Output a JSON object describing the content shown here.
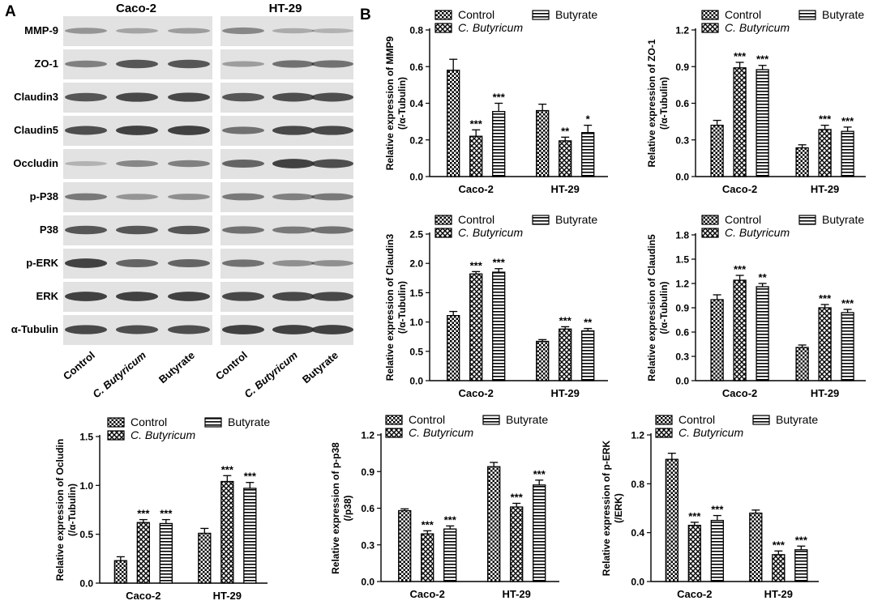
{
  "panel_a": {
    "letter": "A",
    "cell_lines": [
      "Caco-2",
      "HT-29"
    ],
    "proteins": [
      "MMP-9",
      "ZO-1",
      "Claudin3",
      "Claudin5",
      "Occludin",
      "p-P38",
      "P38",
      "p-ERK",
      "ERK",
      "α-Tubulin"
    ],
    "lane_labels": [
      "Control",
      "C. Butyricum",
      "Butyrate"
    ]
  },
  "panel_b": {
    "letter": "B"
  },
  "colors": {
    "bar_edge": "#000000",
    "background": "#ffffff",
    "blot_bg": "#e2e2e2",
    "band": "#303030"
  },
  "chart_data": [
    {
      "type": "bar",
      "ylabel": "Relative expression of MMP9",
      "ylabel2": "(/α-Tubulin)",
      "categories": [
        "Caco-2",
        "HT-29"
      ],
      "ylim": [
        0,
        0.8
      ],
      "yticks": [
        "0.0",
        "0.2",
        "0.4",
        "0.6",
        "0.8"
      ],
      "series": [
        {
          "name": "Control",
          "values": [
            0.58,
            0.36
          ],
          "errors": [
            0.06,
            0.035
          ],
          "sig": [
            "",
            ""
          ]
        },
        {
          "name": "C. Butyricum",
          "values": [
            0.22,
            0.195
          ],
          "errors": [
            0.035,
            0.02
          ],
          "sig": [
            "***",
            "**"
          ]
        },
        {
          "name": "Butyrate",
          "values": [
            0.355,
            0.24
          ],
          "errors": [
            0.045,
            0.04
          ],
          "sig": [
            "***",
            "*"
          ]
        }
      ]
    },
    {
      "type": "bar",
      "ylabel": "Relative expression of ZO-1",
      "ylabel2": "(/α-Tubulin)",
      "categories": [
        "Caco-2",
        "HT-29"
      ],
      "ylim": [
        0,
        1.2
      ],
      "yticks": [
        "0.0",
        "0.3",
        "0.6",
        "0.9",
        "1.2"
      ],
      "series": [
        {
          "name": "Control",
          "values": [
            0.42,
            0.235
          ],
          "errors": [
            0.04,
            0.025
          ],
          "sig": [
            "",
            ""
          ]
        },
        {
          "name": "C. Butyricum",
          "values": [
            0.89,
            0.385
          ],
          "errors": [
            0.045,
            0.035
          ],
          "sig": [
            "***",
            "***"
          ]
        },
        {
          "name": "Butyrate",
          "values": [
            0.875,
            0.37
          ],
          "errors": [
            0.035,
            0.035
          ],
          "sig": [
            "***",
            "***"
          ]
        }
      ]
    },
    {
      "type": "bar",
      "ylabel": "Relative expression of Claudin3",
      "ylabel2": "(/α-Tubulin)",
      "categories": [
        "Caco-2",
        "HT-29"
      ],
      "ylim": [
        0,
        2.5
      ],
      "yticks": [
        "0.0",
        "0.5",
        "1.0",
        "1.5",
        "2.0",
        "2.5"
      ],
      "series": [
        {
          "name": "Control",
          "values": [
            1.11,
            0.67
          ],
          "errors": [
            0.07,
            0.03
          ],
          "sig": [
            "",
            ""
          ]
        },
        {
          "name": "C. Butyricum",
          "values": [
            1.82,
            0.88
          ],
          "errors": [
            0.04,
            0.04
          ],
          "sig": [
            "***",
            "***"
          ]
        },
        {
          "name": "Butyrate",
          "values": [
            1.85,
            0.85
          ],
          "errors": [
            0.06,
            0.04
          ],
          "sig": [
            "***",
            "**"
          ]
        }
      ]
    },
    {
      "type": "bar",
      "ylabel": "Relative expression of Claudin5",
      "ylabel2": "(/α-Tubulin)",
      "categories": [
        "Caco-2",
        "HT-29"
      ],
      "ylim": [
        0,
        1.8
      ],
      "yticks": [
        "0.0",
        "0.3",
        "0.6",
        "0.9",
        "1.2",
        "1.5",
        "1.8"
      ],
      "series": [
        {
          "name": "Control",
          "values": [
            1.0,
            0.41
          ],
          "errors": [
            0.06,
            0.03
          ],
          "sig": [
            "",
            ""
          ]
        },
        {
          "name": "C. Butyricum",
          "values": [
            1.24,
            0.9
          ],
          "errors": [
            0.06,
            0.04
          ],
          "sig": [
            "***",
            "***"
          ]
        },
        {
          "name": "Butyrate",
          "values": [
            1.16,
            0.84
          ],
          "errors": [
            0.04,
            0.04
          ],
          "sig": [
            "**",
            "***"
          ]
        }
      ]
    },
    {
      "type": "bar",
      "ylabel": "Relative expression of Ocludin",
      "ylabel2": "(/α-Tubulin)",
      "categories": [
        "Caco-2",
        "HT-29"
      ],
      "ylim": [
        0,
        1.5
      ],
      "yticks": [
        "0.0",
        "0.5",
        "1.0",
        "1.5"
      ],
      "series": [
        {
          "name": "Control",
          "values": [
            0.23,
            0.51
          ],
          "errors": [
            0.04,
            0.05
          ],
          "sig": [
            "",
            ""
          ]
        },
        {
          "name": "C. Butyricum",
          "values": [
            0.62,
            1.04
          ],
          "errors": [
            0.03,
            0.06
          ],
          "sig": [
            "***",
            "***"
          ]
        },
        {
          "name": "Butyrate",
          "values": [
            0.61,
            0.97
          ],
          "errors": [
            0.04,
            0.06
          ],
          "sig": [
            "***",
            "***"
          ]
        }
      ]
    },
    {
      "type": "bar",
      "ylabel": "Relative expression of p-p38",
      "ylabel2": "(/p38)",
      "categories": [
        "Caco-2",
        "HT-29"
      ],
      "ylim": [
        0,
        1.2
      ],
      "yticks": [
        "0.0",
        "0.3",
        "0.6",
        "0.9",
        "1.2"
      ],
      "series": [
        {
          "name": "Control",
          "values": [
            0.58,
            0.94
          ],
          "errors": [
            0.015,
            0.035
          ],
          "sig": [
            "",
            ""
          ]
        },
        {
          "name": "C. Butyricum",
          "values": [
            0.39,
            0.61
          ],
          "errors": [
            0.025,
            0.03
          ],
          "sig": [
            "***",
            "***"
          ]
        },
        {
          "name": "Butyrate",
          "values": [
            0.43,
            0.79
          ],
          "errors": [
            0.025,
            0.04
          ],
          "sig": [
            "***",
            "***"
          ]
        }
      ]
    },
    {
      "type": "bar",
      "ylabel": "Relative expression of p-ERK",
      "ylabel2": "(/ERK)",
      "categories": [
        "Caco-2",
        "HT-29"
      ],
      "ylim": [
        0,
        1.2
      ],
      "yticks": [
        "0.0",
        "0.4",
        "0.8",
        "1.2"
      ],
      "series": [
        {
          "name": "Control",
          "values": [
            1.0,
            0.56
          ],
          "errors": [
            0.05,
            0.025
          ],
          "sig": [
            "",
            ""
          ]
        },
        {
          "name": "C. Butyricum",
          "values": [
            0.46,
            0.22
          ],
          "errors": [
            0.025,
            0.03
          ],
          "sig": [
            "***",
            "***"
          ]
        },
        {
          "name": "Butyrate",
          "values": [
            0.5,
            0.26
          ],
          "errors": [
            0.04,
            0.03
          ],
          "sig": [
            "***",
            "***"
          ]
        }
      ]
    }
  ]
}
